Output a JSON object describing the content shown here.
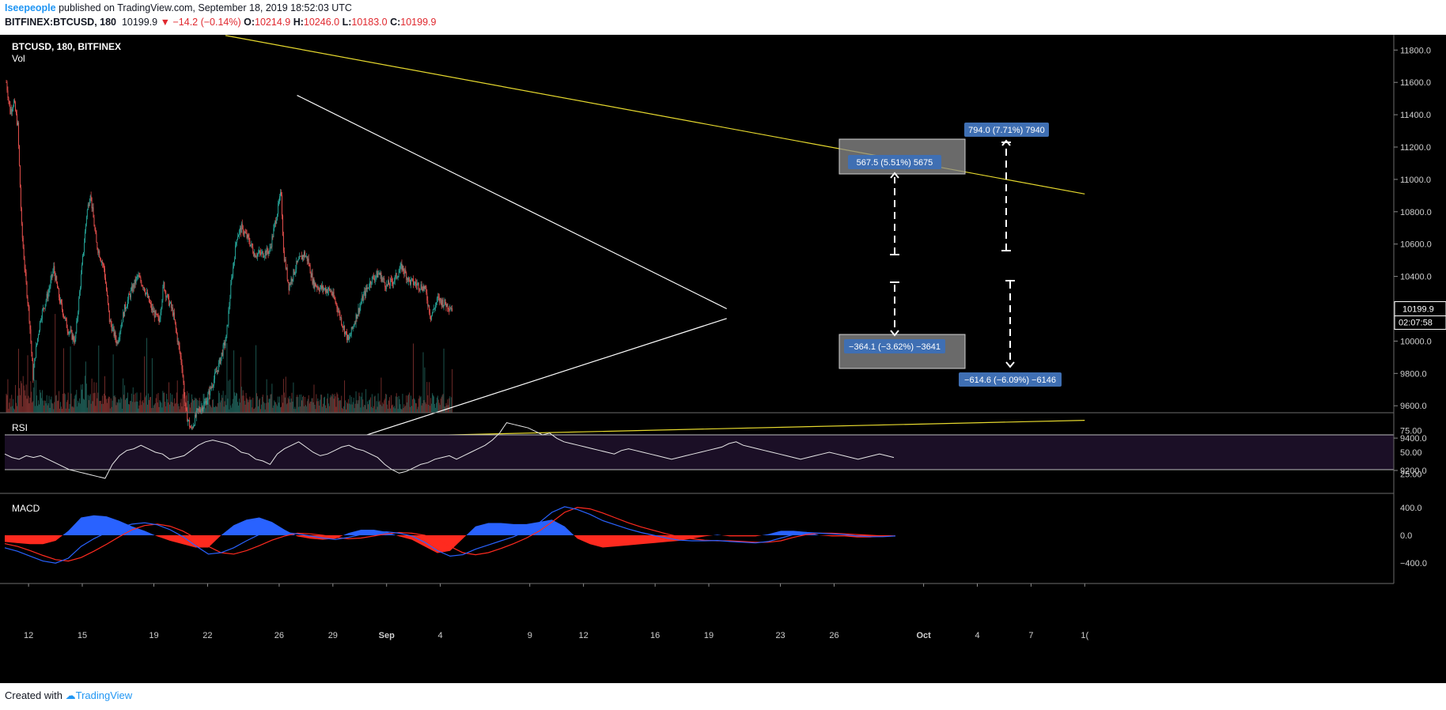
{
  "header": {
    "publisher": "Iseepeople",
    "published_text": "published on TradingView.com, September 18, 2019 18:52:03 UTC",
    "symbol_full": "BITFINEX:BTCUSD, 180",
    "last": "10199.9",
    "change": "−14.2 (−0.14%)",
    "o_label": "O:",
    "o_value": "10214.9",
    "h_label": "H:",
    "h_value": "10246.0",
    "l_label": "L:",
    "l_value": "10183.0",
    "c_label": "C:",
    "c_value": "10199.9"
  },
  "footer": {
    "created_with": "Created with",
    "brand": "TradingView"
  },
  "colors": {
    "background": "#000000",
    "bull": "#26a69a",
    "bear": "#ef5350",
    "vol_bull": "#1e5c55",
    "vol_bear": "#7a2f2d",
    "trendline": "#ffffff",
    "channel": "#e6d92e",
    "rsi_band": "#1b0f26",
    "macd_line": "#2962ff",
    "signal_line": "#ff2a1f",
    "hist_pos": "#2962ff",
    "hist_neg": "#ff2a1f",
    "label_bg": "#3f6fb3"
  },
  "chart_data": [
    {
      "type": "candlestick",
      "title": "BTCUSD, 180, BITFINEX",
      "subtitle": "Vol",
      "ylim": [
        9100,
        11900
      ],
      "y_ticks": [
        "11800.0",
        "11600.0",
        "11400.0",
        "11200.0",
        "11000.0",
        "10800.0",
        "10600.0",
        "10400.0",
        "10000.0",
        "9800.0",
        "9600.0",
        "9400.0",
        "9200.0"
      ],
      "x_ticks": [
        "12",
        "15",
        "19",
        "22",
        "26",
        "29",
        "Sep",
        "4",
        "9",
        "12",
        "16",
        "19",
        "23",
        "26",
        "Oct",
        "4",
        "7",
        "1("
      ],
      "last_price": "10199.9",
      "countdown": "02:07:58",
      "price_path": [
        [
          0,
          11600
        ],
        [
          5,
          11420
        ],
        [
          10,
          11480
        ],
        [
          15,
          11330
        ],
        [
          20,
          10700
        ],
        [
          25,
          10400
        ],
        [
          30,
          10150
        ],
        [
          35,
          9780
        ],
        [
          38,
          9920
        ],
        [
          45,
          10150
        ],
        [
          55,
          10300
        ],
        [
          62,
          10450
        ],
        [
          70,
          10250
        ],
        [
          80,
          10080
        ],
        [
          90,
          10000
        ],
        [
          98,
          10400
        ],
        [
          105,
          10780
        ],
        [
          110,
          10920
        ],
        [
          118,
          10600
        ],
        [
          128,
          10450
        ],
        [
          135,
          10130
        ],
        [
          145,
          9990
        ],
        [
          155,
          10200
        ],
        [
          162,
          10290
        ],
        [
          172,
          10400
        ],
        [
          180,
          10340
        ],
        [
          190,
          10200
        ],
        [
          200,
          10120
        ],
        [
          206,
          10350
        ],
        [
          210,
          10280
        ],
        [
          218,
          10180
        ],
        [
          230,
          9850
        ],
        [
          235,
          9560
        ],
        [
          242,
          9450
        ],
        [
          250,
          9560
        ],
        [
          260,
          9610
        ],
        [
          268,
          9710
        ],
        [
          278,
          9850
        ],
        [
          288,
          10020
        ],
        [
          295,
          10380
        ],
        [
          302,
          10650
        ],
        [
          308,
          10700
        ],
        [
          318,
          10620
        ],
        [
          325,
          10540
        ],
        [
          335,
          10540
        ],
        [
          345,
          10560
        ],
        [
          352,
          10730
        ],
        [
          360,
          10920
        ],
        [
          363,
          10550
        ],
        [
          370,
          10340
        ],
        [
          380,
          10470
        ],
        [
          390,
          10540
        ],
        [
          395,
          10500
        ],
        [
          402,
          10360
        ],
        [
          410,
          10330
        ],
        [
          418,
          10320
        ],
        [
          425,
          10310
        ],
        [
          432,
          10230
        ],
        [
          440,
          10110
        ],
        [
          448,
          10000
        ],
        [
          458,
          10150
        ],
        [
          468,
          10280
        ],
        [
          478,
          10380
        ],
        [
          488,
          10420
        ],
        [
          498,
          10340
        ],
        [
          508,
          10380
        ],
        [
          518,
          10460
        ],
        [
          528,
          10370
        ],
        [
          538,
          10350
        ],
        [
          548,
          10330
        ],
        [
          556,
          10150
        ],
        [
          565,
          10260
        ],
        [
          575,
          10230
        ],
        [
          585,
          10200
        ]
      ],
      "series": [
        {
          "name": "Resistance (white)",
          "points": [
            [
              "Aug 27",
              11520
            ],
            [
              "Sep 20",
              10200
            ]
          ]
        },
        {
          "name": "Support (white)",
          "points": [
            [
              "Aug 27",
              9280
            ],
            [
              "Sep 20",
              10140
            ]
          ]
        },
        {
          "name": "Channel top (yellow)",
          "points": [
            [
              "Aug 23",
              11890
            ],
            [
              "Oct 10",
              10910
            ]
          ]
        },
        {
          "name": "Channel bottom (yellow)",
          "points": [
            [
              "Aug 12",
              9360
            ],
            [
              "Oct 10",
              9510
            ]
          ]
        }
      ],
      "annotations": [
        {
          "text": "567.5 (5.51%) 5675"
        },
        {
          "text": "794.0 (7.71%) 7940"
        },
        {
          "text": "−364.1 (−3.62%) −3641"
        },
        {
          "text": "−614.6 (−6.09%) −6146"
        }
      ]
    },
    {
      "type": "line",
      "title": "RSI",
      "ylim": [
        0,
        100
      ],
      "y_ticks": [
        "75.00",
        "50.00",
        "25.00"
      ],
      "band": [
        30,
        70
      ],
      "series": [
        {
          "name": "RSI",
          "values": [
            48,
            44,
            42,
            46,
            44,
            46,
            42,
            38,
            34,
            30,
            28,
            26,
            24,
            22,
            20,
            36,
            46,
            52,
            54,
            58,
            54,
            50,
            48,
            42,
            44,
            46,
            52,
            58,
            62,
            64,
            62,
            60,
            56,
            50,
            48,
            42,
            40,
            36,
            48,
            54,
            58,
            62,
            56,
            50,
            46,
            48,
            52,
            56,
            58,
            54,
            52,
            48,
            44,
            36,
            30,
            26,
            28,
            32,
            36,
            38,
            42,
            44,
            46,
            42,
            46,
            50,
            54,
            58,
            64,
            72,
            84,
            82,
            80,
            78,
            74,
            70,
            72,
            66,
            62,
            60,
            58,
            56,
            54,
            52,
            50,
            48,
            52,
            54,
            52,
            50,
            48,
            46,
            44,
            42,
            44,
            46,
            48,
            50,
            52,
            54,
            56,
            60,
            62,
            58,
            56,
            54,
            52,
            50,
            48,
            46,
            44,
            42,
            44,
            46,
            48,
            50,
            48,
            46,
            44,
            42,
            44,
            46,
            48,
            46,
            44
          ]
        }
      ]
    },
    {
      "type": "line",
      "title": "MACD",
      "ylim": [
        -500,
        450
      ],
      "y_ticks": [
        "400.0",
        "0.0",
        "−400.0"
      ],
      "series": [
        {
          "name": "MACD",
          "values": [
            -180,
            -230,
            -300,
            -370,
            -400,
            -330,
            -160,
            -50,
            40,
            110,
            160,
            180,
            150,
            80,
            -20,
            -150,
            -270,
            -250,
            -180,
            -80,
            10,
            50,
            40,
            20,
            -10,
            -40,
            -60,
            -30,
            10,
            40,
            50,
            30,
            -10,
            -100,
            -220,
            -300,
            -280,
            -200,
            -140,
            -80,
            -20,
            60,
            180,
            330,
            410,
            370,
            300,
            210,
            150,
            90,
            40,
            0,
            -40,
            -70,
            -80,
            -80,
            -75,
            -90,
            -100,
            -110,
            -90,
            -40,
            10,
            40,
            30,
            20,
            10,
            -10,
            -20,
            -20,
            -10
          ]
        },
        {
          "name": "Signal",
          "values": [
            -120,
            -160,
            -220,
            -290,
            -350,
            -370,
            -320,
            -230,
            -130,
            -20,
            80,
            140,
            160,
            130,
            60,
            -40,
            -160,
            -250,
            -270,
            -220,
            -150,
            -70,
            -10,
            30,
            20,
            0,
            -30,
            -50,
            -40,
            -10,
            20,
            40,
            30,
            0,
            -60,
            -160,
            -250,
            -280,
            -250,
            -190,
            -120,
            -40,
            60,
            190,
            330,
            400,
            380,
            320,
            250,
            180,
            120,
            70,
            20,
            -20,
            -50,
            -70,
            -80,
            -80,
            -90,
            -100,
            -100,
            -80,
            -30,
            10,
            30,
            30,
            20,
            10,
            0,
            -10,
            -10
          ]
        }
      ]
    }
  ]
}
